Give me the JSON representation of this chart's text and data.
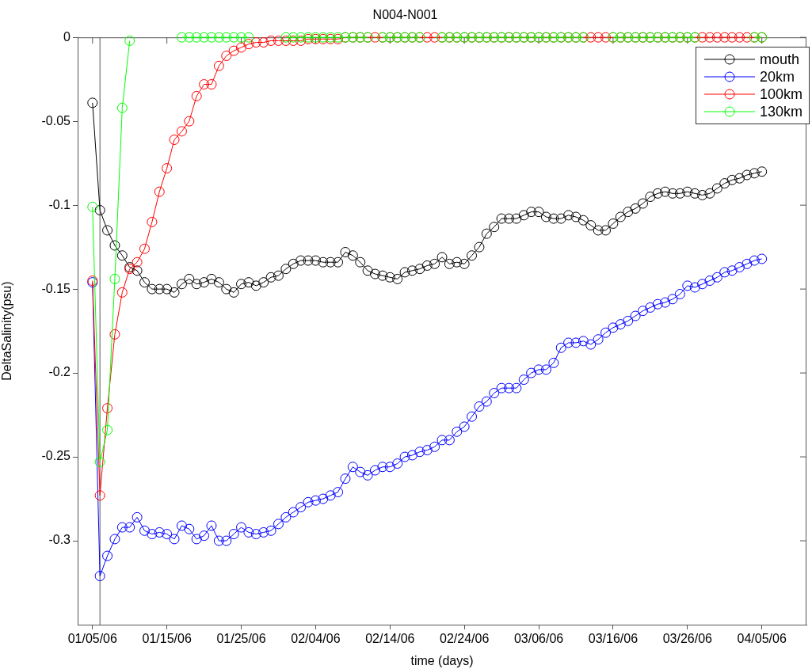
{
  "chart_data": {
    "type": "line",
    "title": "N004-N001",
    "xlabel": "time (days)",
    "ylabel": "DeltaSalinity(psu)",
    "x": [
      "--01-05",
      "--01-06",
      "--01-07",
      "--01-08",
      "--01-09",
      "--01-10",
      "--01-11",
      "--01-12",
      "--01-13",
      "--01-14",
      "--01-15",
      "--01-16",
      "--01-17",
      "--01-18",
      "--01-19",
      "--01-20",
      "--01-21",
      "--01-22",
      "--01-23",
      "--01-24",
      "--01-25",
      "--01-26",
      "--01-27",
      "--01-28",
      "--01-29",
      "--01-30",
      "--01-31",
      "--02-01",
      "--02-02",
      "--02-03",
      "--02-04",
      "--02-05",
      "--02-06",
      "--02-07",
      "--02-08",
      "--02-09",
      "--02-10",
      "--02-11",
      "--02-12",
      "--02-13",
      "--02-14",
      "--02-15",
      "--02-16",
      "--02-17",
      "--02-18",
      "--02-19",
      "--02-20",
      "--02-21",
      "--02-22",
      "--02-23",
      "--02-24",
      "--02-25",
      "--02-26",
      "--02-27",
      "--02-28",
      "--03-01",
      "--03-02",
      "--03-03",
      "--03-04",
      "--03-05",
      "--03-06",
      "--03-07",
      "--03-08",
      "--03-09",
      "--03-10",
      "--03-11",
      "--03-12",
      "--03-13",
      "--03-14",
      "--03-15",
      "--03-16",
      "--03-17",
      "--03-18",
      "--03-19",
      "--03-20",
      "--03-21",
      "--03-22",
      "--03-23",
      "--03-24",
      "--03-25",
      "--03-26",
      "--03-27",
      "--03-28",
      "--03-29",
      "--03-30",
      "--03-31",
      "--04-01",
      "--04-02",
      "--04-03",
      "--04-04",
      "--04-05"
    ],
    "series": [
      {
        "name": "mouth",
        "color": "#000000",
        "values": [
          -0.039,
          -0.103,
          -0.115,
          -0.124,
          -0.13,
          -0.137,
          -0.139,
          -0.146,
          -0.15,
          -0.15,
          -0.15,
          -0.152,
          -0.147,
          -0.144,
          -0.147,
          -0.146,
          -0.144,
          -0.146,
          -0.15,
          -0.152,
          -0.147,
          -0.146,
          -0.148,
          -0.146,
          -0.143,
          -0.142,
          -0.138,
          -0.135,
          -0.133,
          -0.133,
          -0.133,
          -0.134,
          -0.134,
          -0.134,
          -0.128,
          -0.13,
          -0.134,
          -0.139,
          -0.141,
          -0.142,
          -0.143,
          -0.144,
          -0.14,
          -0.139,
          -0.138,
          -0.136,
          -0.135,
          -0.131,
          -0.135,
          -0.134,
          -0.135,
          -0.13,
          -0.125,
          -0.117,
          -0.113,
          -0.108,
          -0.108,
          -0.108,
          -0.106,
          -0.104,
          -0.104,
          -0.107,
          -0.108,
          -0.108,
          -0.106,
          -0.107,
          -0.109,
          -0.112,
          -0.115,
          -0.115,
          -0.111,
          -0.107,
          -0.104,
          -0.102,
          -0.099,
          -0.095,
          -0.093,
          -0.092,
          -0.093,
          -0.093,
          -0.092,
          -0.093,
          -0.094,
          -0.093,
          -0.09,
          -0.087,
          -0.085,
          -0.084,
          -0.082,
          -0.081,
          -0.08
        ]
      },
      {
        "name": "20km",
        "color": "#0000ff",
        "values": [
          -0.146,
          -0.321,
          -0.309,
          -0.299,
          -0.292,
          -0.292,
          -0.286,
          -0.294,
          -0.296,
          -0.295,
          -0.296,
          -0.299,
          -0.291,
          -0.293,
          -0.299,
          -0.297,
          -0.291,
          -0.3,
          -0.3,
          -0.296,
          -0.292,
          -0.295,
          -0.296,
          -0.295,
          -0.294,
          -0.29,
          -0.286,
          -0.283,
          -0.28,
          -0.277,
          -0.276,
          -0.275,
          -0.273,
          -0.271,
          -0.263,
          -0.256,
          -0.259,
          -0.261,
          -0.258,
          -0.256,
          -0.256,
          -0.254,
          -0.25,
          -0.249,
          -0.247,
          -0.246,
          -0.244,
          -0.24,
          -0.24,
          -0.235,
          -0.232,
          -0.226,
          -0.22,
          -0.217,
          -0.212,
          -0.209,
          -0.209,
          -0.209,
          -0.204,
          -0.2,
          -0.198,
          -0.198,
          -0.194,
          -0.185,
          -0.182,
          -0.182,
          -0.181,
          -0.183,
          -0.18,
          -0.176,
          -0.173,
          -0.171,
          -0.169,
          -0.166,
          -0.163,
          -0.161,
          -0.159,
          -0.158,
          -0.156,
          -0.153,
          -0.148,
          -0.149,
          -0.147,
          -0.145,
          -0.143,
          -0.14,
          -0.139,
          -0.137,
          -0.135,
          -0.133,
          -0.132
        ]
      },
      {
        "name": "100km",
        "color": "#ff0000",
        "values": [
          -0.145,
          -0.273,
          -0.221,
          -0.177,
          -0.152,
          -0.138,
          -0.134,
          -0.126,
          -0.11,
          -0.092,
          -0.078,
          -0.061,
          -0.056,
          -0.05,
          -0.035,
          -0.028,
          -0.028,
          -0.017,
          -0.011,
          -0.008,
          -0.006,
          -0.004,
          -0.003,
          -0.003,
          -0.002,
          -0.002,
          -0.002,
          -0.002,
          -0.002,
          -0.001,
          -0.001,
          -0.001,
          -0.001,
          -0.001,
          0,
          0,
          0,
          0,
          0,
          0,
          0,
          0,
          0,
          0,
          0,
          0,
          0,
          0,
          0,
          0,
          0,
          0,
          0,
          0,
          0,
          0,
          0,
          0,
          0,
          0,
          0,
          0,
          0,
          0,
          0,
          0,
          0,
          0,
          0,
          0,
          0,
          0,
          0,
          0,
          0,
          0,
          0,
          0,
          0,
          0,
          0,
          0,
          0,
          0,
          0,
          0,
          0,
          0,
          0,
          0,
          0
        ]
      },
      {
        "name": "130km",
        "color": "#00ff00",
        "values": [
          -0.101,
          -0.253,
          -0.234,
          -0.144,
          -0.042,
          -0.002,
          null,
          null,
          null,
          null,
          null,
          null,
          0,
          0,
          0,
          0,
          0,
          0,
          0,
          0,
          0,
          0,
          null,
          null,
          null,
          null,
          0,
          0,
          0,
          0,
          0,
          0,
          0,
          0,
          0,
          0,
          0,
          0,
          null,
          0,
          0,
          0,
          0,
          0,
          0,
          null,
          null,
          0,
          0,
          0,
          0,
          0,
          0,
          0,
          0,
          0,
          0,
          0,
          0,
          0,
          0,
          0,
          0,
          0,
          0,
          0,
          0,
          null,
          null,
          null,
          0,
          0,
          0,
          0,
          0,
          0,
          0,
          0,
          0,
          0,
          0,
          0,
          null,
          null,
          null,
          null,
          null,
          null,
          null,
          0,
          0
        ]
      }
    ],
    "xlim": [
      "--01-03",
      "--04-11"
    ],
    "xticks": [
      {
        "value": "--01-05",
        "label": "01/05/06"
      },
      {
        "value": "--01-15",
        "label": "01/15/06"
      },
      {
        "value": "--01-25",
        "label": "01/25/06"
      },
      {
        "value": "--02-04",
        "label": "02/04/06"
      },
      {
        "value": "--02-14",
        "label": "02/14/06"
      },
      {
        "value": "--02-24",
        "label": "02/24/06"
      },
      {
        "value": "--03-06",
        "label": "03/06/06"
      },
      {
        "value": "--03-16",
        "label": "03/16/06"
      },
      {
        "value": "--03-26",
        "label": "03/26/06"
      },
      {
        "value": "--04-05",
        "label": "04/05/06"
      }
    ],
    "ylim": [
      -0.35,
      0
    ],
    "yticks": [
      -0.3,
      -0.25,
      -0.2,
      -0.15,
      -0.1,
      -0.05,
      0
    ],
    "ref_lines": [
      {
        "axis": "x",
        "value": "--01-06",
        "color": "#555555"
      }
    ],
    "marker": "circle",
    "line_style": "solid",
    "grid": false,
    "legend": "top right"
  }
}
